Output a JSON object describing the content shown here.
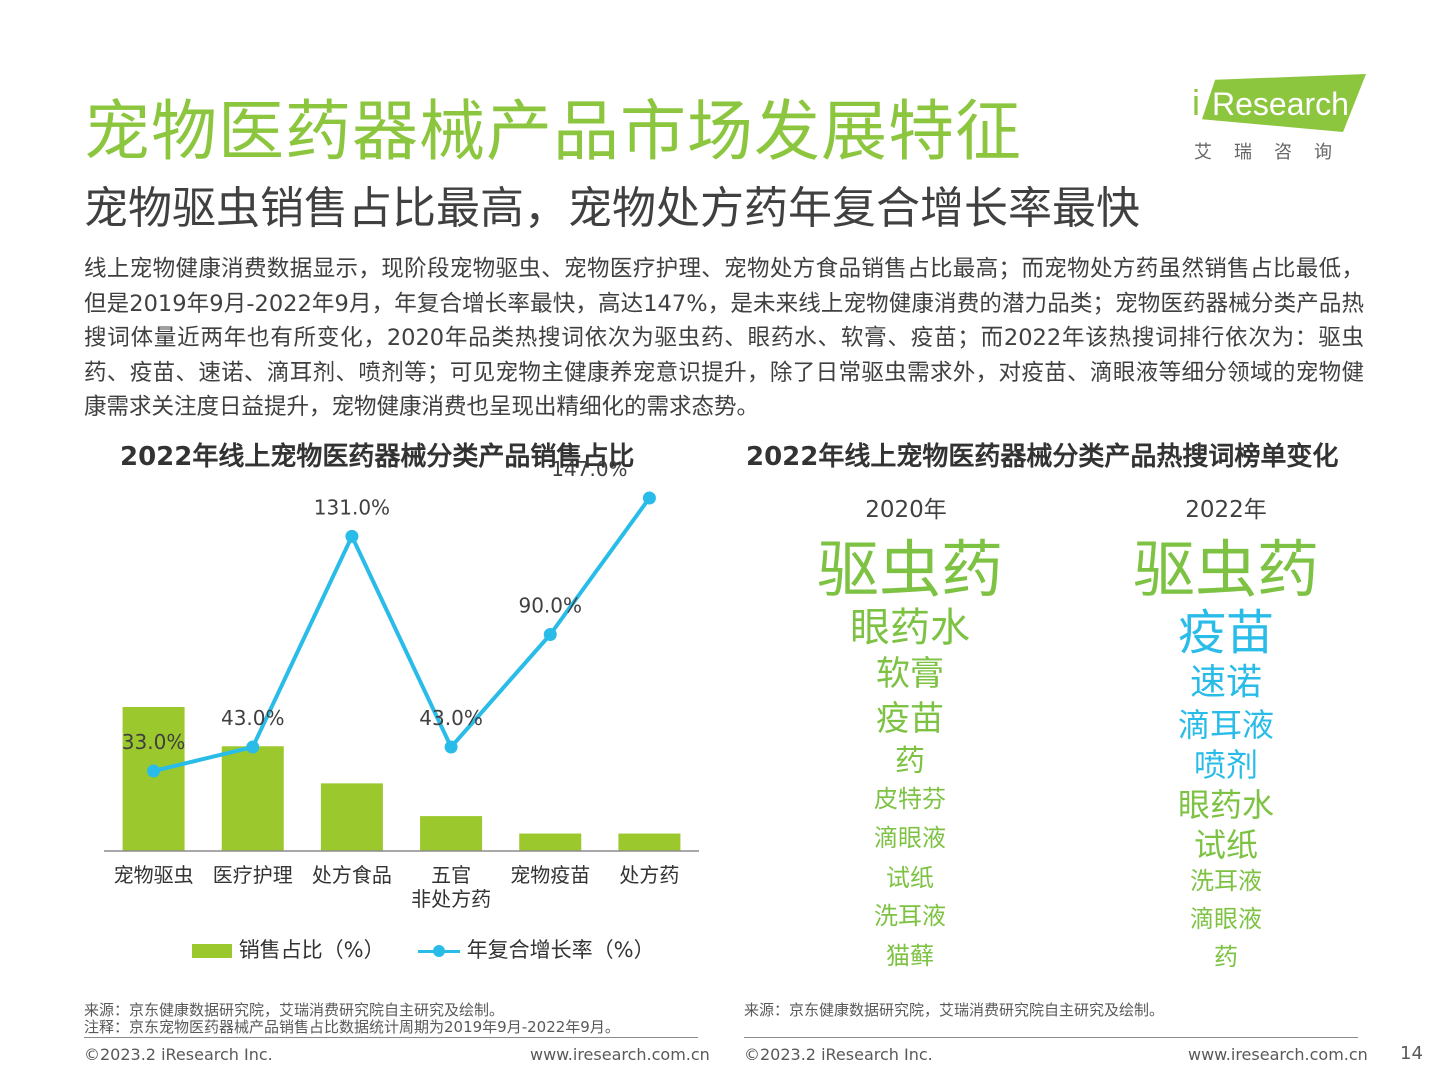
{
  "header": {
    "title": "宠物医药器械产品市场发展特征",
    "subtitle": "宠物驱虫销售占比最高，宠物处方药年复合增长率最快"
  },
  "logo": {
    "text": "Research",
    "i": "i",
    "sub": "艾瑞咨询"
  },
  "intro": "线上宠物健康消费数据显示，现阶段宠物驱虫、宠物医疗护理、宠物处方食品销售占比最高；而宠物处方药虽然销售占比最低，但是2019年9月-2022年9月，年复合增长率最快，高达147%，是未来线上宠物健康消费的潜力品类；宠物医药器械分类产品热搜词体量近两年也有所变化，2020年品类热搜词依次为驱虫药、眼药水、软膏、疫苗；而2022年该热搜词排行依次为：驱虫药、疫苗、速诺、滴耳剂、喷剂等；可见宠物主健康养宠意识提升，除了日常驱虫需求外，对疫苗、滴眼液等细分领域的宠物健康需求关注度日益提升，宠物健康消费也呈现出精细化的需求态势。",
  "left_panel": {
    "title": "2022年线上宠物医药器械分类产品销售占比"
  },
  "right_panel": {
    "title": "2022年线上宠物医药器械分类产品热搜词榜单变化",
    "columns": [
      {
        "year": "2020年",
        "words": [
          "驱虫药",
          "眼药水",
          "软膏",
          "疫苗",
          "药",
          "皮特芬",
          "滴眼液",
          "试纸",
          "洗耳液",
          "猫藓"
        ]
      },
      {
        "year": "2022年",
        "words": [
          "驱虫药",
          "疫苗",
          "速诺",
          "滴耳液",
          "喷剂",
          "眼药水",
          "试纸",
          "洗耳液",
          "滴眼液",
          "药"
        ]
      }
    ]
  },
  "chart_data": {
    "type": "bar",
    "title": "2022年线上宠物医药器械分类产品销售占比",
    "categories": [
      "宠物驱虫",
      "医疗护理",
      "处方食品",
      "五官\n非处方药",
      "宠物疫苗",
      "处方药"
    ],
    "series": [
      {
        "name": "销售占比（%）",
        "type": "bar",
        "values": [
          33.0,
          24.0,
          15.5,
          8.0,
          4.0,
          4.0
        ],
        "labels": [
          "33.0%",
          "",
          "",
          "",
          "",
          ""
        ]
      },
      {
        "name": "年复合增长率（%）",
        "type": "line",
        "values": [
          33.0,
          43.0,
          131.0,
          43.0,
          90.0,
          147.0
        ],
        "labels": [
          "",
          "43.0%",
          "131.0%",
          "43.0%",
          "90.0%",
          "147.0%"
        ]
      }
    ],
    "colors": {
      "bar": "#9bc82d",
      "line": "#29bce8"
    },
    "grid": false,
    "legend": "bottom"
  },
  "sources": {
    "left_source": "来源：京东健康数据研究院，艾瑞消费研究院自主研究及绘制。",
    "left_note": "注释：京东宠物医药器械产品销售占比数据统计周期为2019年9月-2022年9月。",
    "right_source": "来源：京东健康数据研究院，艾瑞消费研究院自主研究及绘制。"
  },
  "footer": {
    "copyright": "©2023.2 iResearch Inc.",
    "url": "www.iresearch.com.cn",
    "page": "14"
  },
  "colors": {
    "accent": "#8cc63f",
    "highlight": "#29bce8",
    "word_green": "#7dc243"
  }
}
